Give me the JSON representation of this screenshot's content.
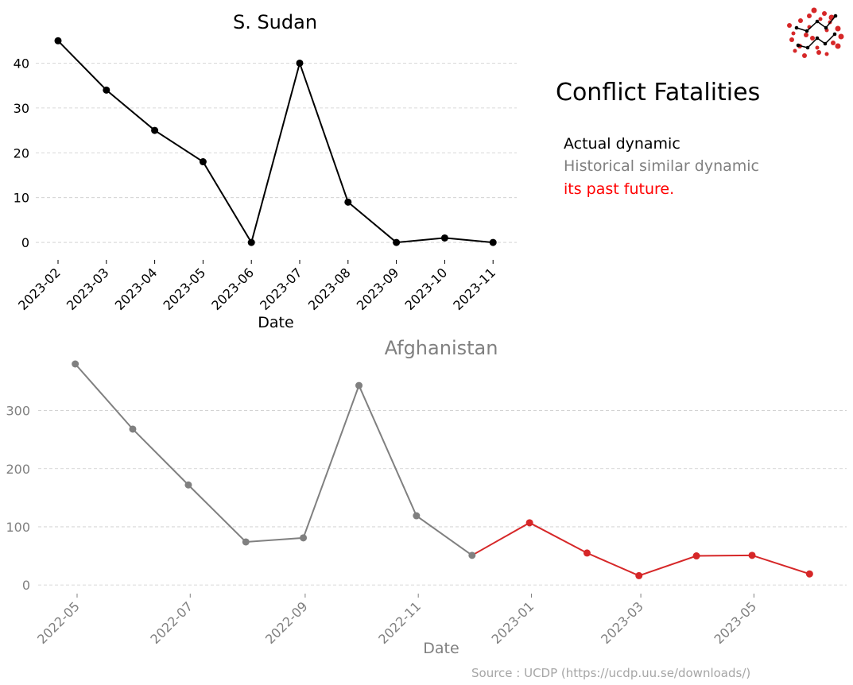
{
  "header": {
    "title": "Conflict Fatalities",
    "legend": {
      "actual": "Actual dynamic",
      "historical": "Historical similar dynamic",
      "future": "its past future."
    },
    "source": "Source : UCDP (https://ucdp.uu.se/downloads/)"
  },
  "colors": {
    "actual": "#000000",
    "historical": "#808080",
    "future": "#d62728",
    "legend_future": "#ff0000"
  },
  "logo": {
    "icon": "chart-logo-icon"
  },
  "chart_data": [
    {
      "type": "line",
      "title": "S. Sudan",
      "xlabel": "Date",
      "ylabel": "",
      "x": [
        "2023-02",
        "2023-03",
        "2023-04",
        "2023-05",
        "2023-06",
        "2023-07",
        "2023-08",
        "2023-09",
        "2023-10",
        "2023-11"
      ],
      "series": [
        {
          "values": [
            45,
            34,
            25,
            18,
            0,
            40,
            9,
            0,
            1,
            0
          ]
        }
      ],
      "ylim": [
        -3,
        47
      ],
      "yticks": [
        0,
        10,
        20,
        30,
        40
      ],
      "grid": "y-dashed"
    },
    {
      "type": "line",
      "title": "Afghanistan",
      "xlabel": "Date",
      "ylabel": "",
      "xticks": [
        "2022-05",
        "2022-07",
        "2022-09",
        "2022-11",
        "2023-01",
        "2023-03",
        "2023-05"
      ],
      "series": [
        {
          "x": [
            "2022-04-30",
            "2022-05-31",
            "2022-06-30",
            "2022-07-31",
            "2022-08-31",
            "2022-09-30",
            "2022-10-31",
            "2022-11-30"
          ],
          "values": [
            380,
            268,
            172,
            74,
            81,
            343,
            119,
            51
          ]
        },
        {
          "x": [
            "2022-11-30",
            "2022-12-31",
            "2023-01-31",
            "2023-02-28",
            "2023-03-31",
            "2023-04-30",
            "2023-05-31"
          ],
          "values": [
            51,
            107,
            55,
            16,
            50,
            51,
            19
          ]
        }
      ],
      "xlim": [
        "2022-04-10",
        "2023-06-20"
      ],
      "ylim": [
        -8,
        380
      ],
      "yticks": [
        0,
        100,
        200,
        300
      ],
      "grid": "y-dashed"
    }
  ]
}
